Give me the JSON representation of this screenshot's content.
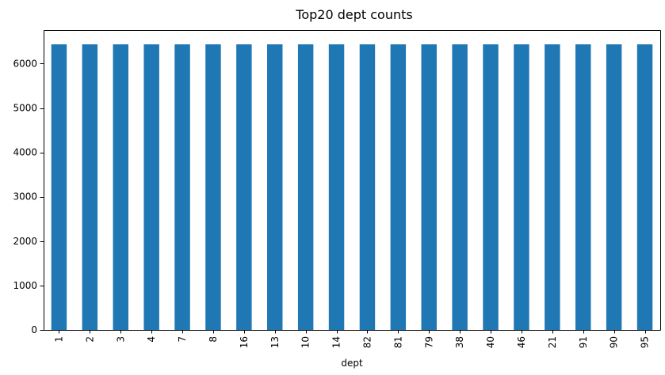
{
  "chart_data": {
    "type": "bar",
    "title": "Top20 dept counts",
    "xlabel": "dept",
    "ylabel": "",
    "categories": [
      "1",
      "2",
      "3",
      "4",
      "7",
      "8",
      "16",
      "13",
      "10",
      "14",
      "82",
      "81",
      "79",
      "38",
      "40",
      "46",
      "21",
      "91",
      "90",
      "95"
    ],
    "values": [
      6435,
      6435,
      6435,
      6435,
      6435,
      6435,
      6435,
      6435,
      6435,
      6435,
      6435,
      6435,
      6435,
      6435,
      6435,
      6435,
      6435,
      6435,
      6435,
      6435
    ],
    "ylim": [
      0,
      6757
    ],
    "yticks": [
      0,
      1000,
      2000,
      3000,
      4000,
      5000,
      6000
    ],
    "grid": false,
    "colors": {
      "bar": "#1f77b4"
    }
  }
}
